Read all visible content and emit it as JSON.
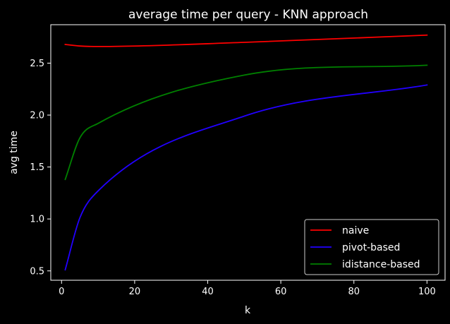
{
  "chart_data": {
    "type": "line",
    "title": "average time per query - KNN approach",
    "xlabel": "k",
    "ylabel": "avg time",
    "xlim": [
      -2.95,
      104.95
    ],
    "ylim": [
      0.41,
      2.87
    ],
    "xticks": [
      0,
      20,
      40,
      60,
      80,
      100
    ],
    "yticks": [
      0.5,
      1.0,
      1.5,
      2.0,
      2.5
    ],
    "xtick_labels": [
      "0",
      "20",
      "40",
      "60",
      "80",
      "100"
    ],
    "ytick_labels": [
      "0.5",
      "1.0",
      "1.5",
      "2.0",
      "2.5"
    ],
    "grid": false,
    "legend_position": "bottom-right",
    "background": "#000000",
    "foreground": "#ffffff",
    "series": [
      {
        "name": "naive",
        "color": "#ff0000",
        "x": [
          1,
          5,
          10,
          50,
          100
        ],
        "y": [
          2.68,
          2.665,
          2.66,
          2.7,
          2.77
        ]
      },
      {
        "name": "pivot-based",
        "color": "#2200ff",
        "x": [
          1,
          5,
          10,
          50,
          100
        ],
        "y": [
          0.51,
          1.01,
          1.27,
          1.99,
          2.29
        ]
      },
      {
        "name": "idistance-based",
        "color": "#008000",
        "x": [
          1,
          5,
          10,
          50,
          100
        ],
        "y": [
          1.38,
          1.78,
          1.92,
          2.385,
          2.48
        ]
      }
    ]
  }
}
